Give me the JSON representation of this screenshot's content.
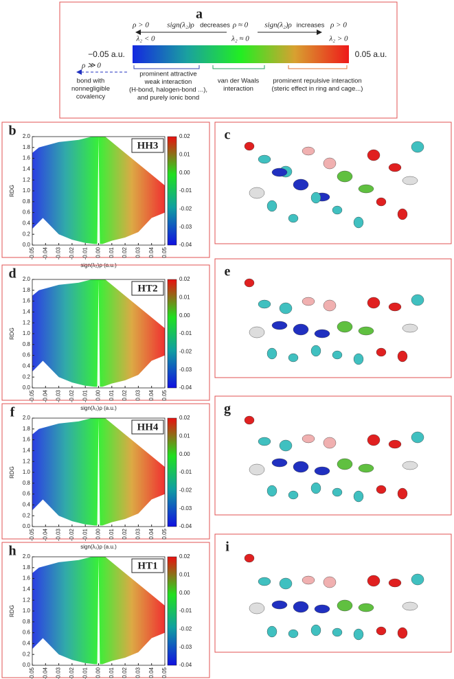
{
  "panel_a": {
    "label": "a",
    "left_rho": "ρ > 0",
    "left_sign": "sign(λ₂)ρ",
    "left_trend": "decreases",
    "left_lambda": "λ₂ < 0",
    "mid_rho": "ρ ≈ 0",
    "mid_lambda": "λ₂ ≈ 0",
    "right_sign": "sign(λ₂)ρ",
    "right_trend": "increases",
    "right_rho": "ρ > 0",
    "right_lambda": "λ₂ > 0",
    "scale_min": "−0.05 a.u.",
    "scale_max": "0.05 a.u.",
    "covalent_rho": "ρ ≫ 0",
    "covalent_text": [
      "bond with",
      "nonnegligible",
      "covalency"
    ],
    "attractive": [
      "prominent attractive",
      "weak interaction",
      "(H-bond, halogen-bond ...),",
      "and purely ionic bond"
    ],
    "vdw": [
      "van der Waals",
      "interaction"
    ],
    "repulsive": [
      "prominent repulsive interaction",
      "(steric effect in ring and cage...)"
    ]
  },
  "plots": [
    {
      "label": "b",
      "name": "HH3",
      "y_label": "RDG",
      "x_label": "sign(λ₂)ρ (a.u.)",
      "xticks": [
        "-0.05",
        "-0.04",
        "-0.03",
        "-0.02",
        "-0.01",
        "0.00",
        "0.01",
        "0.02",
        "0.03",
        "0.04",
        "0.05"
      ],
      "yticks": [
        "0.0",
        "0.2",
        "0.4",
        "0.6",
        "0.8",
        "1.0",
        "1.2",
        "1.4",
        "1.6",
        "1.8",
        "2.0"
      ],
      "cbar_ticks": [
        "0.02",
        "0.01",
        "0.00",
        "-0.01",
        "-0.02",
        "-0.03",
        "-0.04"
      ]
    },
    {
      "label": "d",
      "name": "HT2",
      "y_label": "RDG",
      "x_label": "sign(λ₂)ρ (a.u.)",
      "xticks": [
        "-0.05",
        "-0.04",
        "-0.03",
        "-0.02",
        "-0.01",
        "0.00",
        "0.01",
        "0.02",
        "0.03",
        "0.04",
        "0.05"
      ],
      "yticks": [
        "0.0",
        "0.2",
        "0.4",
        "0.6",
        "0.8",
        "1.0",
        "1.2",
        "1.4",
        "1.6",
        "1.8",
        "2.0"
      ],
      "cbar_ticks": [
        "0.02",
        "0.01",
        "0.00",
        "-0.01",
        "-0.02",
        "-0.03",
        "-0.04"
      ]
    },
    {
      "label": "f",
      "name": "HH4",
      "y_label": "RDG",
      "x_label": "sign(λ₂)ρ (a.u.)",
      "xticks": [
        "-0.05",
        "-0.04",
        "-0.03",
        "-0.02",
        "-0.01",
        "0.00",
        "0.01",
        "0.02",
        "0.03",
        "0.04",
        "0.05"
      ],
      "yticks": [
        "0.0",
        "0.2",
        "0.4",
        "0.6",
        "0.8",
        "1.0",
        "1.2",
        "1.4",
        "1.6",
        "1.8",
        "2.0"
      ],
      "cbar_ticks": [
        "0.02",
        "0.01",
        "0.00",
        "-0.01",
        "-0.02",
        "-0.03",
        "-0.04"
      ]
    },
    {
      "label": "h",
      "name": "HT1",
      "y_label": "RDG",
      "x_label": "sign(λ₂)ρ (a.u.)",
      "xticks": [
        "-0.05",
        "-0.04",
        "-0.03",
        "-0.02",
        "-0.01",
        "0.00",
        "0.01",
        "0.02",
        "0.03",
        "0.04",
        "0.05"
      ],
      "yticks": [
        "0.0",
        "0.2",
        "0.4",
        "0.6",
        "0.8",
        "1.0",
        "1.2",
        "1.4",
        "1.6",
        "1.8",
        "2.0"
      ],
      "cbar_ticks": [
        "0.02",
        "0.01",
        "0.00",
        "-0.01",
        "-0.02",
        "-0.03",
        "-0.04"
      ]
    }
  ],
  "structures": [
    {
      "label": "c"
    },
    {
      "label": "e"
    },
    {
      "label": "g"
    },
    {
      "label": "i"
    }
  ]
}
